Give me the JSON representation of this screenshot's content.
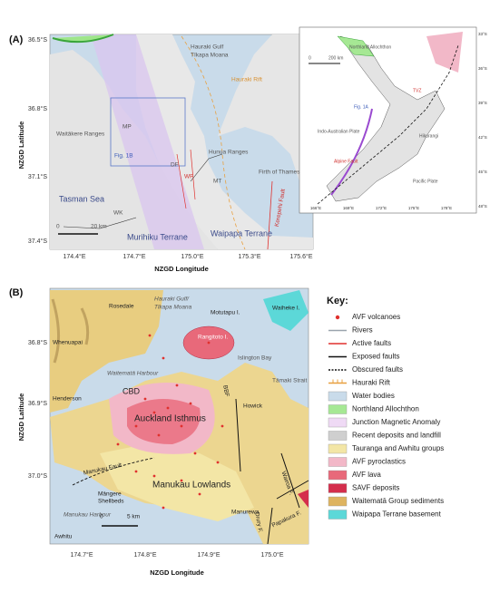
{
  "panel_a": {
    "label": "(A)",
    "y_axis_label": "NZGD Latitude",
    "x_axis_label": "NZGD Longitude",
    "lat_ticks": [
      "36.5°S",
      "36.8°S",
      "37.1°S",
      "37.4°S"
    ],
    "lon_ticks": [
      "174.4°E",
      "174.7°E",
      "175.0°E",
      "175.3°E",
      "175.6°E"
    ],
    "map_labels": [
      "Hauraki Gulf",
      "Tīkapa Moana",
      "Hauraki Rift",
      "Fig. 1B",
      "Waitākere Ranges",
      "MP",
      "Hunua Ranges",
      "Firth of Thames",
      "Tasman Sea",
      "Murihiku Terrane",
      "Waipapa Terrane",
      "Kerepehi Fault",
      "WK",
      "DF",
      "WF",
      "MT"
    ],
    "scale_labels": [
      "0",
      "20 km"
    ],
    "inset_labels": [
      "Northland Allochthon",
      "Fig. 1A",
      "TVZ",
      "Indo-Australian Plate",
      "Pacific Plate",
      "Hikurangi",
      "Alpine Fault",
      "0",
      "200 km"
    ],
    "inset_lat_ticks": [
      "33°S",
      "36°S",
      "39°S",
      "42°S",
      "45°S",
      "48°S"
    ],
    "inset_lon_ticks": [
      "166°E",
      "169°E",
      "172°E",
      "175°E",
      "178°E"
    ]
  },
  "panel_b": {
    "label": "(B)",
    "y_axis_label": "NZGD Latitude",
    "x_axis_label": "NZGD Longitude",
    "lat_ticks": [
      "36.8°S",
      "36.9°S",
      "37.0°S"
    ],
    "lon_ticks": [
      "174.7°E",
      "174.8°E",
      "174.9°E",
      "175.0°E"
    ],
    "map_labels": [
      "Hauraki Gulf/",
      "Tīkapa Moana",
      "Rosedale",
      "Motutapu I.",
      "Waiheke I.",
      "Whenuapai",
      "Rangitoto I.",
      "Islington Bay",
      "Waitematā Harbour",
      "Tāmaki Strait",
      "CBD",
      "Henderson",
      "Auckland Isthmus",
      "BBF",
      "Howick",
      "Manukau Fault",
      "Māngere",
      "Shellbeds",
      "Manukau Lowlands",
      "Manukau Harbour",
      "Manurewa",
      "Wairoa F.",
      "Drury F.",
      "Papakura F.",
      "Awhitu"
    ],
    "scale_labels": [
      "0",
      "5 km"
    ],
    "key": {
      "title": "Key:",
      "items": [
        {
          "label": "AVF volcanoes",
          "style": "point",
          "color": "#e0312e"
        },
        {
          "label": "Rivers",
          "style": "line",
          "color": "#9aa4ad"
        },
        {
          "label": "Active faults",
          "style": "line",
          "color": "#e0312e"
        },
        {
          "label": "Exposed faults",
          "style": "line",
          "color": "#111111"
        },
        {
          "label": "Obscured faults",
          "style": "dashed",
          "color": "#111111"
        },
        {
          "label": "Hauraki Rift",
          "style": "rift",
          "color": "#e8a040"
        },
        {
          "label": "Water bodies",
          "style": "fill",
          "color": "#c9dbea"
        },
        {
          "label": "Northland Allochthon",
          "style": "fill",
          "color": "#a6e894"
        },
        {
          "label": "Junction Magnetic Anomaly",
          "style": "fill",
          "color": "#efdaf5"
        },
        {
          "label": "Recent deposits and landfill",
          "style": "fill",
          "color": "#cfcfcf"
        },
        {
          "label": "Tauranga and Awhitu groups",
          "style": "fill",
          "color": "#f3e6a6"
        },
        {
          "label": "AVF pyroclastics",
          "style": "fill",
          "color": "#f2b8c8"
        },
        {
          "label": "AVF lava",
          "style": "fill",
          "color": "#e8697a"
        },
        {
          "label": "SAVF deposits",
          "style": "fill",
          "color": "#d42e4c"
        },
        {
          "label": "Waitematā Group sediments",
          "style": "fill",
          "color": "#deb460"
        },
        {
          "label": "Waipapa Terrane basement",
          "style": "fill",
          "color": "#5cd8d8"
        }
      ]
    }
  }
}
